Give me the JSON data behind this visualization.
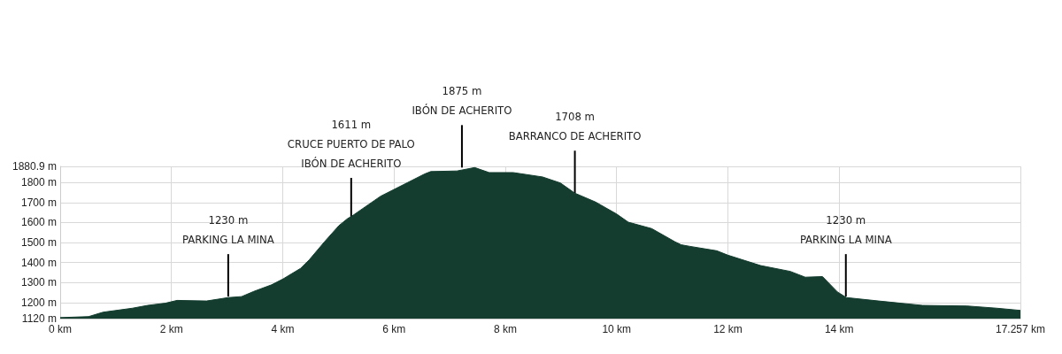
{
  "chart_data": {
    "type": "area",
    "color": "#143d30",
    "grid": true,
    "marker": "none",
    "line_style": "solid",
    "x": [
      0,
      0.51,
      0.77,
      1.3,
      1.57,
      1.89,
      2.1,
      2.63,
      3.02,
      3.26,
      3.48,
      3.8,
      4.01,
      4.32,
      4.48,
      4.75,
      5.01,
      5.17,
      5.23,
      5.76,
      6.55,
      6.66,
      7.13,
      7.45,
      7.71,
      8.14,
      8.67,
      8.99,
      9.25,
      9.62,
      10.0,
      10.21,
      10.63,
      11.05,
      11.16,
      11.32,
      11.8,
      12.0,
      12.59,
      13.12,
      13.39,
      13.7,
      13.97,
      14.13,
      14.71,
      15.5,
      16.3,
      16.83,
      17.257
    ],
    "values": [
      1125,
      1130,
      1152,
      1172,
      1186,
      1197,
      1211,
      1208,
      1225,
      1230,
      1256,
      1289,
      1319,
      1371,
      1415,
      1504,
      1585,
      1621,
      1630,
      1732,
      1843,
      1855,
      1858,
      1875,
      1850,
      1850,
      1828,
      1798,
      1747,
      1703,
      1643,
      1602,
      1570,
      1504,
      1489,
      1481,
      1459,
      1437,
      1385,
      1356,
      1327,
      1330,
      1253,
      1225,
      1208,
      1186,
      1183,
      1172,
      1161
    ],
    "xlim": [
      0,
      17.257
    ],
    "xticks": [
      {
        "value": 0,
        "label": "0 km"
      },
      {
        "value": 2,
        "label": "2 km"
      },
      {
        "value": 4,
        "label": "4 km"
      },
      {
        "value": 6,
        "label": "6 km"
      },
      {
        "value": 8,
        "label": "8 km"
      },
      {
        "value": 10,
        "label": "10 km"
      },
      {
        "value": 12,
        "label": "12 km"
      },
      {
        "value": 14,
        "label": "14 km"
      },
      {
        "value": 17.257,
        "label": "17.257 km"
      }
    ],
    "ylim": [
      1120,
      1880.9
    ],
    "yticks": [
      {
        "value": 1120,
        "label": "1120 m"
      },
      {
        "value": 1200,
        "label": "1200 m"
      },
      {
        "value": 1300,
        "label": "1300 m"
      },
      {
        "value": 1400,
        "label": "1400 m"
      },
      {
        "value": 1500,
        "label": "1500 m"
      },
      {
        "value": 1600,
        "label": "1600 m"
      },
      {
        "value": 1700,
        "label": "1700 m"
      },
      {
        "value": 1800,
        "label": "1800 m"
      },
      {
        "value": 1880.9,
        "label": "1880.9 m"
      }
    ],
    "annotations": [
      {
        "text": "1230 m\nPARKING LA MINA",
        "x": 3.02,
        "y": 1230
      },
      {
        "text": "1611 m\nCRUCE PUERTO DE PALO\nIBÓN DE ACHERITO",
        "x": 5.23,
        "y": 1611
      },
      {
        "text": "1875 m\nIBÓN DE ACHERITO",
        "x": 7.22,
        "y": 1875
      },
      {
        "text": "1708 m\nBARRANCO DE ACHERITO",
        "x": 9.25,
        "y": 1747
      },
      {
        "text": "1230 m\nPARKING LA MINA",
        "x": 14.12,
        "y": 1230
      }
    ]
  }
}
